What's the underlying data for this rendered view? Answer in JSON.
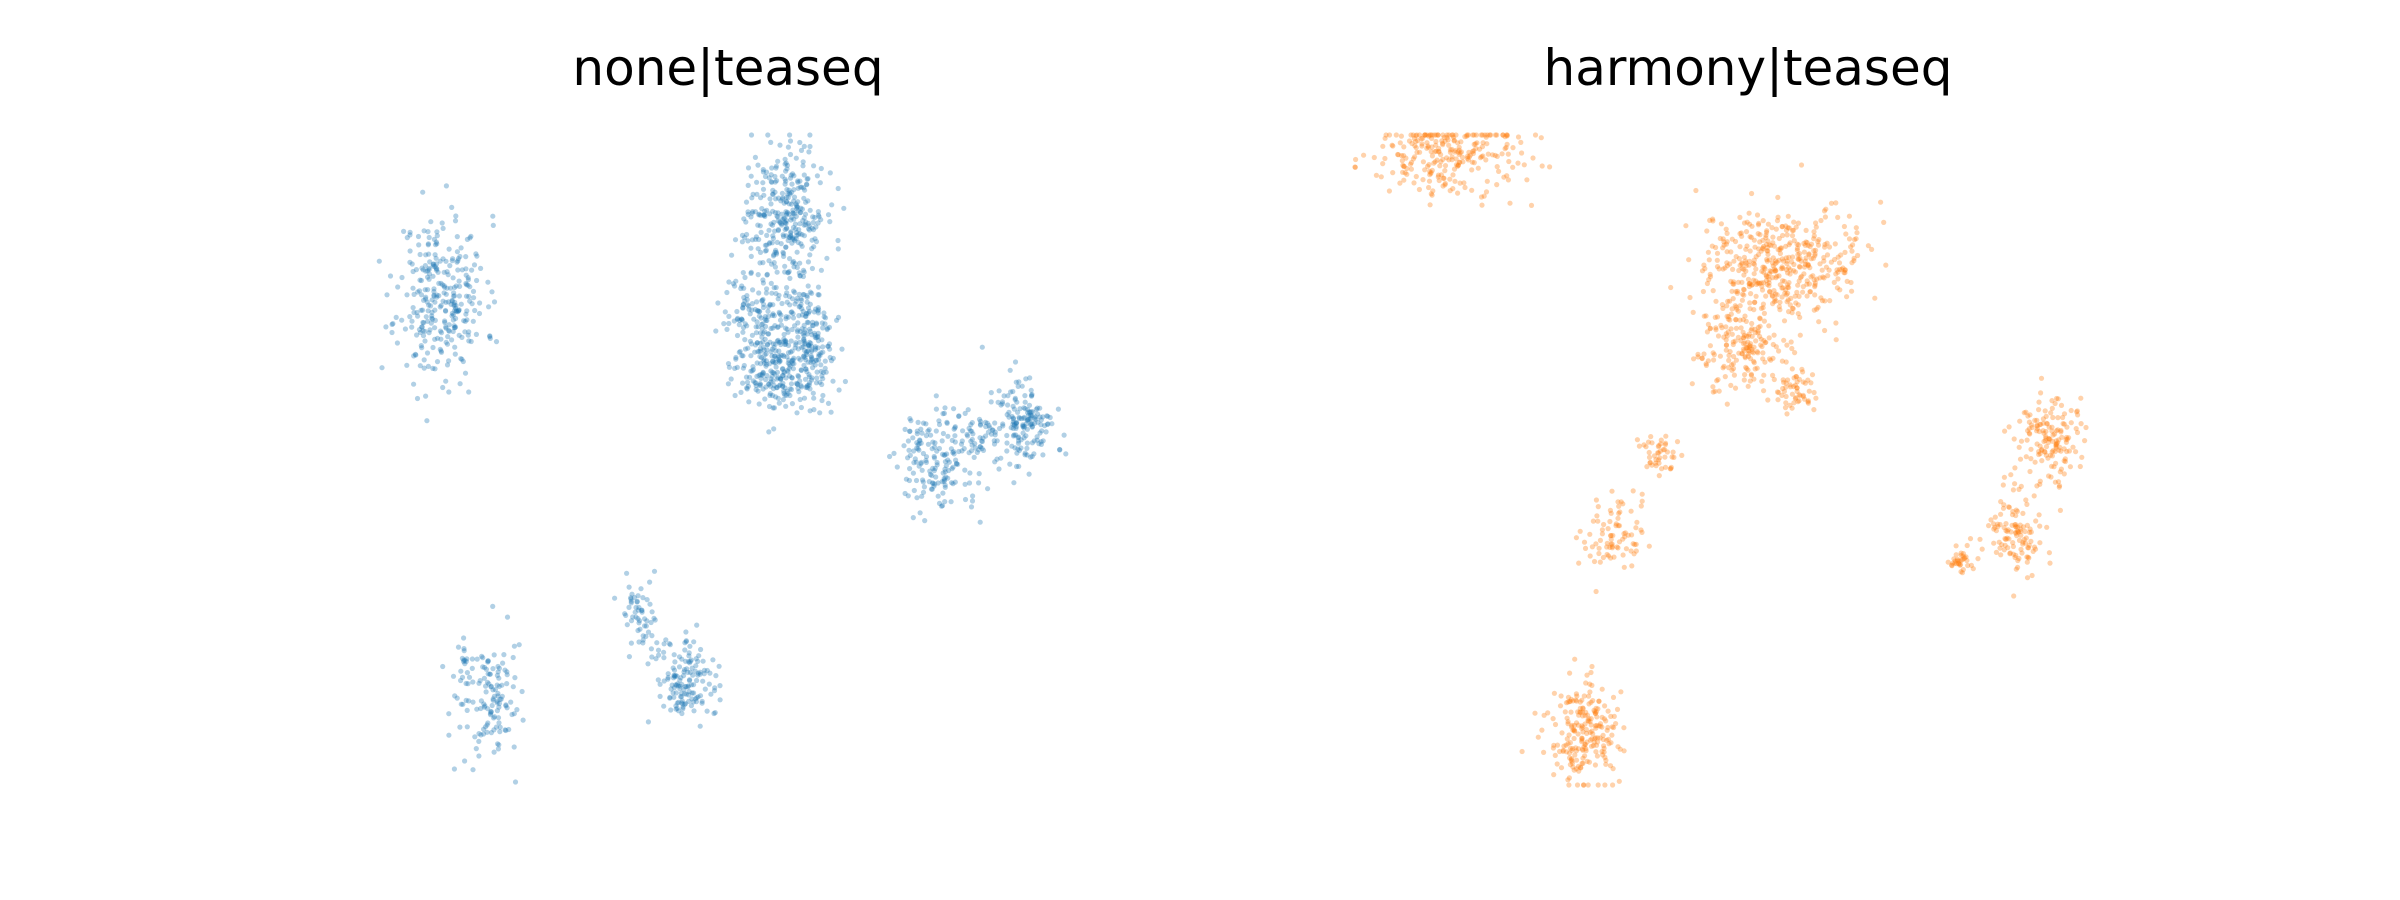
{
  "chart_data": [
    {
      "type": "scatter",
      "title": "none|teaseq",
      "xlabel": "",
      "ylabel": "",
      "axes_visible": false,
      "grid": false,
      "point_color": "#1f77b4",
      "point_alpha": 0.35,
      "point_radius": 2.6,
      "seed": 11,
      "series": [
        {
          "clusters": [
            {
              "cx": 0.135,
              "cy": 0.75,
              "sx": 0.028,
              "sy": 0.063,
              "n": 300
            },
            {
              "cx": 0.57,
              "cy": 0.88,
              "sx": 0.024,
              "sy": 0.056,
              "n": 320
            },
            {
              "cx": 0.54,
              "cy": 0.7,
              "sx": 0.023,
              "sy": 0.05,
              "n": 230
            },
            {
              "cx": 0.6,
              "cy": 0.68,
              "sx": 0.018,
              "sy": 0.044,
              "n": 200
            },
            {
              "cx": 0.56,
              "cy": 0.62,
              "sx": 0.026,
              "sy": 0.024,
              "n": 110
            },
            {
              "cx": 0.765,
              "cy": 0.5,
              "sx": 0.024,
              "sy": 0.042,
              "n": 180
            },
            {
              "cx": 0.875,
              "cy": 0.555,
              "sx": 0.018,
              "sy": 0.035,
              "n": 160
            },
            {
              "cx": 0.82,
              "cy": 0.53,
              "sx": 0.016,
              "sy": 0.017,
              "n": 40
            },
            {
              "cx": 0.385,
              "cy": 0.265,
              "sx": 0.011,
              "sy": 0.024,
              "n": 55
            },
            {
              "cx": 0.445,
              "cy": 0.155,
              "sx": 0.018,
              "sy": 0.033,
              "n": 140
            },
            {
              "cx": 0.415,
              "cy": 0.21,
              "sx": 0.008,
              "sy": 0.01,
              "n": 10
            },
            {
              "cx": 0.195,
              "cy": 0.13,
              "sx": 0.022,
              "sy": 0.043,
              "n": 140
            },
            {
              "cx": 0.165,
              "cy": 0.19,
              "sx": 0.004,
              "sy": 0.012,
              "n": 8
            }
          ]
        }
      ]
    },
    {
      "type": "scatter",
      "title": "harmony|teaseq",
      "xlabel": "",
      "ylabel": "",
      "axes_visible": false,
      "grid": false,
      "point_color": "#ff7f0e",
      "point_alpha": 0.35,
      "point_radius": 2.6,
      "seed": 29,
      "series": [
        {
          "clusters": [
            {
              "cx": 0.11,
              "cy": 0.97,
              "sx": 0.048,
              "sy": 0.03,
              "n": 260
            },
            {
              "cx": 0.54,
              "cy": 0.8,
              "sx": 0.052,
              "sy": 0.045,
              "n": 450
            },
            {
              "cx": 0.49,
              "cy": 0.67,
              "sx": 0.028,
              "sy": 0.032,
              "n": 180
            },
            {
              "cx": 0.555,
              "cy": 0.605,
              "sx": 0.012,
              "sy": 0.014,
              "n": 50
            },
            {
              "cx": 0.385,
              "cy": 0.51,
              "sx": 0.015,
              "sy": 0.016,
              "n": 45
            },
            {
              "cx": 0.325,
              "cy": 0.38,
              "sx": 0.02,
              "sy": 0.025,
              "n": 80
            },
            {
              "cx": 0.36,
              "cy": 0.44,
              "sx": 0.006,
              "sy": 0.02,
              "n": 4
            },
            {
              "cx": 0.88,
              "cy": 0.53,
              "sx": 0.021,
              "sy": 0.033,
              "n": 150
            },
            {
              "cx": 0.84,
              "cy": 0.38,
              "sx": 0.021,
              "sy": 0.028,
              "n": 110
            },
            {
              "cx": 0.765,
              "cy": 0.345,
              "sx": 0.01,
              "sy": 0.01,
              "n": 35
            },
            {
              "cx": 0.83,
              "cy": 0.46,
              "sx": 0.006,
              "sy": 0.018,
              "n": 8
            },
            {
              "cx": 0.29,
              "cy": 0.08,
              "sx": 0.024,
              "sy": 0.043,
              "n": 220
            }
          ]
        }
      ]
    }
  ]
}
